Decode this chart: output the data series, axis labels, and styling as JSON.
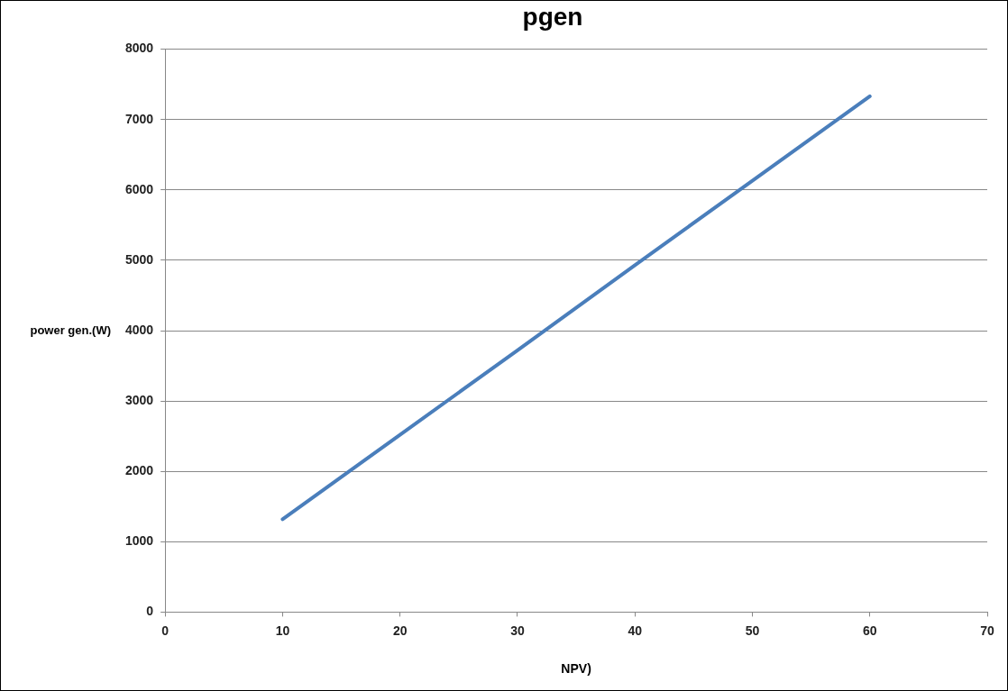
{
  "chart_data": {
    "type": "line",
    "title": "pgen",
    "xlabel": "NPV)",
    "ylabel": "power gen.(W)",
    "x": [
      10,
      20,
      30,
      40,
      50,
      60
    ],
    "series": [
      {
        "color": "#4a7ebb",
        "values": [
          1320,
          2520,
          3720,
          4930,
          6130,
          7330
        ]
      }
    ],
    "xlim": [
      0,
      70
    ],
    "xticks": [
      0,
      10,
      20,
      30,
      40,
      50,
      60,
      70
    ],
    "ylim": [
      0,
      8000
    ],
    "yticks": [
      0,
      1000,
      2000,
      3000,
      4000,
      5000,
      6000,
      7000,
      8000
    ],
    "grid": "y",
    "legend": false,
    "marker": "none",
    "line_style": "solid"
  }
}
